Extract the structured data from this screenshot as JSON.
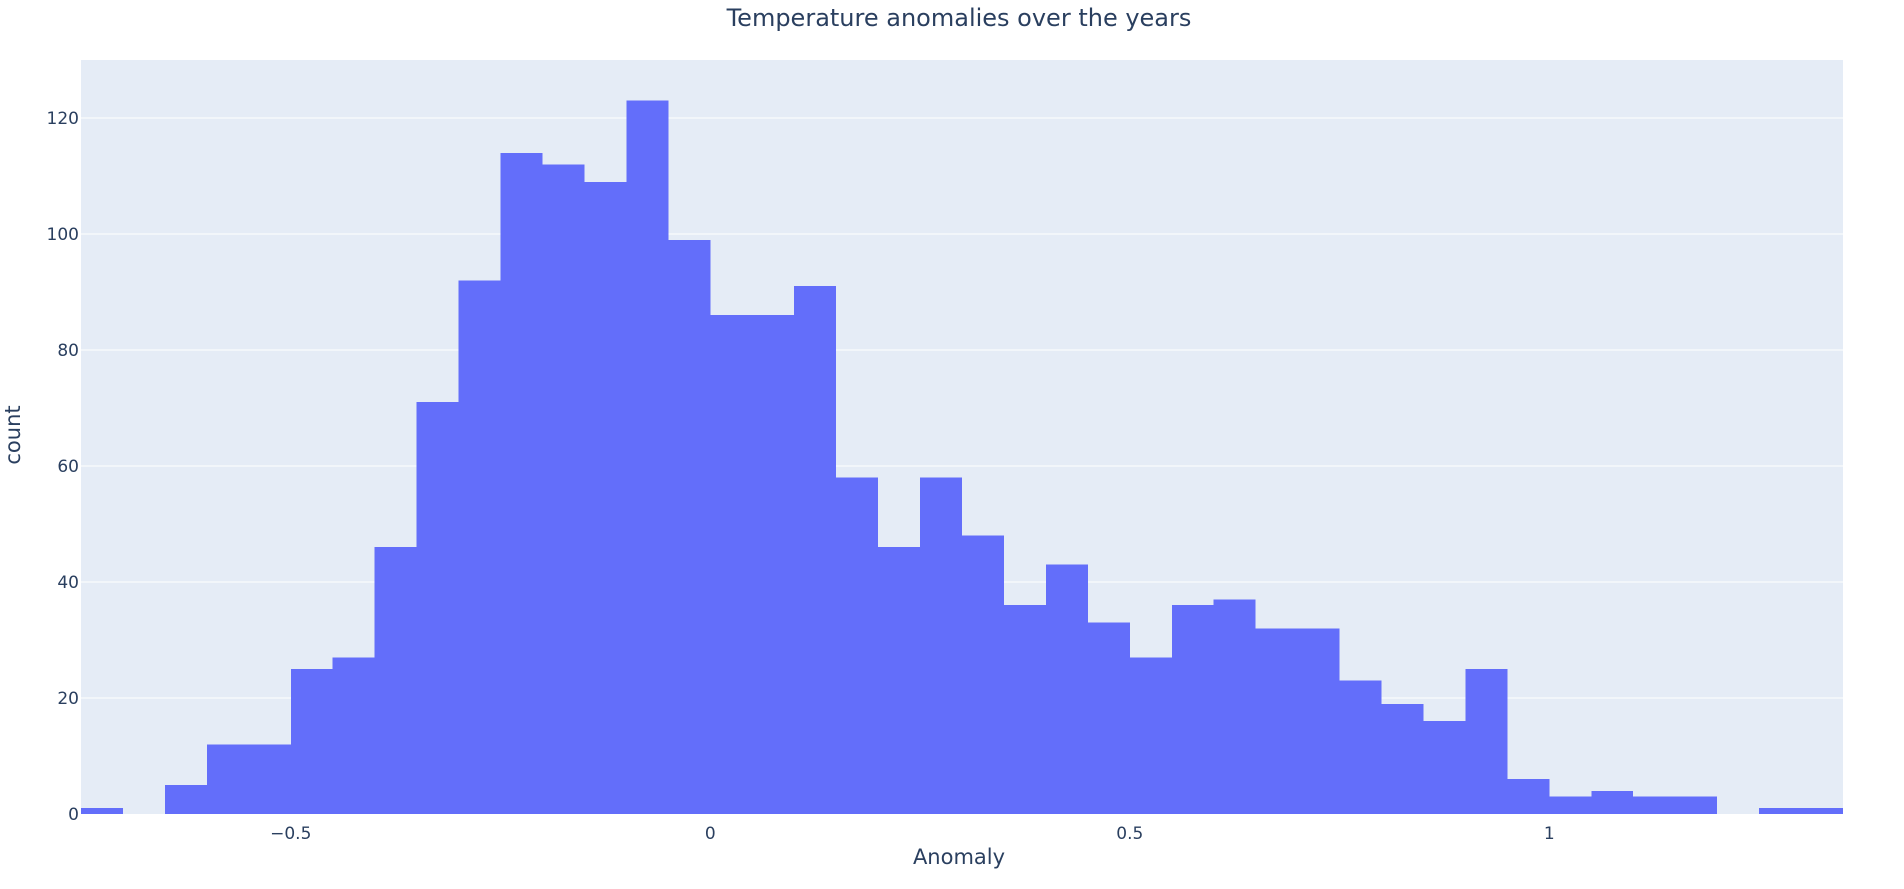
{
  "chart_data": {
    "type": "bar",
    "title": "Temperature anomalies over the years",
    "xlabel": "Anomaly",
    "ylabel": "count",
    "bin_size": 0.05,
    "x_range": [
      -0.75,
      1.35
    ],
    "ylim": [
      0,
      130
    ],
    "grid": true,
    "x_ticks": [
      {
        "value": -0.5,
        "label": "−0.5"
      },
      {
        "value": 0,
        "label": "0"
      },
      {
        "value": 0.5,
        "label": "0.5"
      },
      {
        "value": 1,
        "label": "1"
      }
    ],
    "y_ticks": [
      {
        "value": 0,
        "label": "0"
      },
      {
        "value": 20,
        "label": "20"
      },
      {
        "value": 40,
        "label": "40"
      },
      {
        "value": 60,
        "label": "60"
      },
      {
        "value": 80,
        "label": "80"
      },
      {
        "value": 100,
        "label": "100"
      },
      {
        "value": 120,
        "label": "120"
      }
    ],
    "bins": [
      {
        "x0": -0.75,
        "x1": -0.7,
        "count": 1
      },
      {
        "x0": -0.7,
        "x1": -0.65,
        "count": 0
      },
      {
        "x0": -0.65,
        "x1": -0.6,
        "count": 5
      },
      {
        "x0": -0.6,
        "x1": -0.55,
        "count": 12
      },
      {
        "x0": -0.55,
        "x1": -0.5,
        "count": 12
      },
      {
        "x0": -0.5,
        "x1": -0.45,
        "count": 25
      },
      {
        "x0": -0.45,
        "x1": -0.4,
        "count": 27
      },
      {
        "x0": -0.4,
        "x1": -0.35,
        "count": 46
      },
      {
        "x0": -0.35,
        "x1": -0.3,
        "count": 71
      },
      {
        "x0": -0.3,
        "x1": -0.25,
        "count": 92
      },
      {
        "x0": -0.25,
        "x1": -0.2,
        "count": 114
      },
      {
        "x0": -0.2,
        "x1": -0.15,
        "count": 112
      },
      {
        "x0": -0.15,
        "x1": -0.1,
        "count": 109
      },
      {
        "x0": -0.1,
        "x1": -0.05,
        "count": 123
      },
      {
        "x0": -0.05,
        "x1": 0.0,
        "count": 99
      },
      {
        "x0": 0.0,
        "x1": 0.05,
        "count": 86
      },
      {
        "x0": 0.05,
        "x1": 0.1,
        "count": 86
      },
      {
        "x0": 0.1,
        "x1": 0.15,
        "count": 91
      },
      {
        "x0": 0.15,
        "x1": 0.2,
        "count": 58
      },
      {
        "x0": 0.2,
        "x1": 0.25,
        "count": 46
      },
      {
        "x0": 0.25,
        "x1": 0.3,
        "count": 58
      },
      {
        "x0": 0.3,
        "x1": 0.35,
        "count": 48
      },
      {
        "x0": 0.35,
        "x1": 0.4,
        "count": 36
      },
      {
        "x0": 0.4,
        "x1": 0.45,
        "count": 43
      },
      {
        "x0": 0.45,
        "x1": 0.5,
        "count": 33
      },
      {
        "x0": 0.5,
        "x1": 0.55,
        "count": 27
      },
      {
        "x0": 0.55,
        "x1": 0.6,
        "count": 36
      },
      {
        "x0": 0.6,
        "x1": 0.65,
        "count": 37
      },
      {
        "x0": 0.65,
        "x1": 0.7,
        "count": 32
      },
      {
        "x0": 0.7,
        "x1": 0.75,
        "count": 32
      },
      {
        "x0": 0.75,
        "x1": 0.8,
        "count": 23
      },
      {
        "x0": 0.8,
        "x1": 0.85,
        "count": 19
      },
      {
        "x0": 0.85,
        "x1": 0.9,
        "count": 16
      },
      {
        "x0": 0.9,
        "x1": 0.95,
        "count": 25
      },
      {
        "x0": 0.95,
        "x1": 1.0,
        "count": 6
      },
      {
        "x0": 1.0,
        "x1": 1.05,
        "count": 3
      },
      {
        "x0": 1.05,
        "x1": 1.1,
        "count": 4
      },
      {
        "x0": 1.1,
        "x1": 1.15,
        "count": 3
      },
      {
        "x0": 1.15,
        "x1": 1.2,
        "count": 3
      },
      {
        "x0": 1.2,
        "x1": 1.25,
        "count": 0
      },
      {
        "x0": 1.25,
        "x1": 1.3,
        "count": 1
      },
      {
        "x0": 1.3,
        "x1": 1.35,
        "count": 1
      }
    ],
    "colors": {
      "bar": "#636efa",
      "plot_bg": "#e5ecf6",
      "grid": "#ffffff",
      "text": "#2a3f5f",
      "page_bg": "#ffffff"
    }
  }
}
